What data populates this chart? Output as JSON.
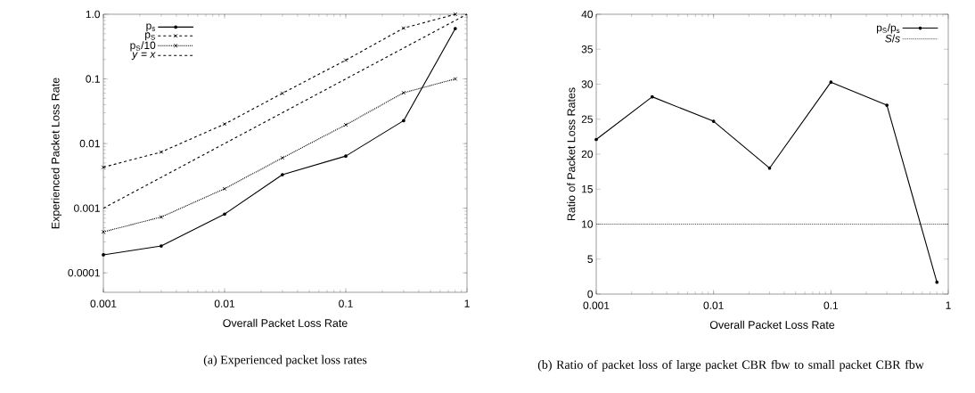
{
  "chart_data": [
    {
      "type": "line",
      "xlabel": "Overall Packet Loss Rate",
      "ylabel": "Experienced Packet Loss Rate",
      "log": "xy",
      "legend": "top left",
      "x": [
        0.001,
        0.003,
        0.01,
        0.03,
        0.1,
        0.3,
        0.8
      ],
      "series": [
        {
          "name": "p$_{s}$",
          "color": "#000000",
          "marker": "circle",
          "line_style": "solid",
          "values": [
            0.00019,
            0.00026,
            0.00081,
            0.0033,
            0.0064,
            0.0226,
            0.6
          ]
        },
        {
          "name": "p$_{S}$",
          "color": "#000000",
          "marker": "cross",
          "line_style": "dashed",
          "values": [
            0.0043,
            0.0074,
            0.02,
            0.06,
            0.195,
            0.61,
            1.0
          ]
        },
        {
          "name": "p$_{S}$/10",
          "color": "#000000",
          "marker": "cross",
          "line_style": "dotted",
          "values": [
            0.00043,
            0.00073,
            0.002,
            0.006,
            0.0195,
            0.061,
            0.1
          ]
        },
        {
          "name": "*y* = *x*",
          "color": "#000000",
          "marker": "none",
          "line_style": "dashed",
          "x": [
            0.001,
            1
          ],
          "values": [
            0.001,
            1
          ]
        }
      ],
      "xlim": [
        0.001,
        1
      ],
      "ylim": [
        5e-05,
        1
      ],
      "xticks": [
        0.001,
        0.01,
        0.1,
        1
      ],
      "yticks": [
        0.0001,
        0.001,
        0.01,
        0.1,
        {
          "value": 1,
          "label": "1.0"
        }
      ],
      "annotations": [
        "(a) Experienced packet loss rates"
      ]
    },
    {
      "type": "line",
      "xlabel": "Overall Packet Loss Rate",
      "ylabel": "Ratio of Packet Loss Rates",
      "log": "x",
      "legend": "top right",
      "x": [
        0.001,
        0.003,
        0.01,
        0.03,
        0.1,
        0.3,
        0.8
      ],
      "series": [
        {
          "name": "p$_{S}$/p$_{s}$",
          "color": "#000000",
          "marker": "circle",
          "line_style": "solid",
          "values": [
            22.1,
            28.2,
            24.7,
            18.0,
            30.3,
            27.0,
            1.7
          ]
        }
      ],
      "ref_lines": [
        {
          "axis": "y",
          "value": 10,
          "label": "*S*/*s*",
          "color": "#000000",
          "line_style": "dotted"
        }
      ],
      "xlim": [
        0.001,
        1
      ],
      "ylim": [
        0,
        40
      ],
      "xticks": [
        0.001,
        0.01,
        0.1,
        1
      ],
      "yticks": [
        0,
        5,
        10,
        15,
        20,
        25,
        30,
        35,
        40
      ],
      "annotations": [
        "(b) Ratio of packet loss of large packet CBR fbw to small packet CBR fbw"
      ]
    }
  ]
}
